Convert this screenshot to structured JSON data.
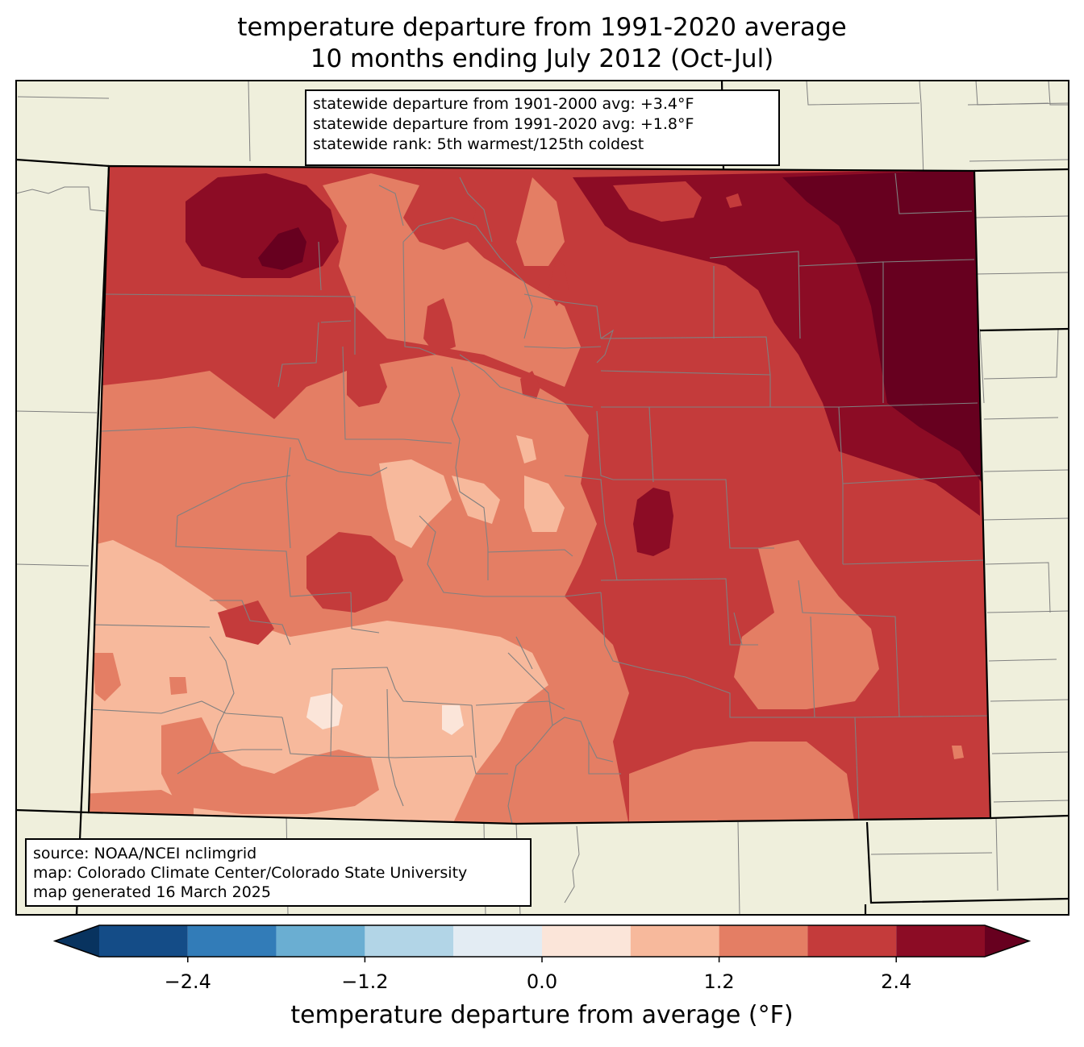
{
  "title": {
    "line1": "temperature departure from 1991-2020 average",
    "line2": "10 months ending July 2012 (Oct-Jul)"
  },
  "stats": {
    "line1": "statewide departure from 1901-2000 avg: +3.4°F",
    "line2": "statewide departure from 1991-2020 avg: +1.8°F",
    "line3": "statewide rank: 5th warmest/125th coldest"
  },
  "credits": {
    "source": "source: NOAA/NCEI nclimgrid",
    "map": "map: Colorado Climate Center/Colorado State University",
    "generated": "map generated 16 March 2025"
  },
  "colorbar": {
    "label": "temperature departure from average (°F)",
    "ticks": [
      "−2.4",
      "−1.2",
      "0.0",
      "1.2",
      "2.4"
    ],
    "tick_values": [
      -2.4,
      -1.2,
      0.0,
      1.2,
      2.4
    ],
    "bounds": [
      -3.0,
      -2.4,
      -1.8,
      -1.2,
      -0.6,
      0.0,
      0.6,
      1.2,
      1.8,
      2.4,
      3.0
    ],
    "colors": [
      "#144c87",
      "#327cb8",
      "#6aaed2",
      "#b2d5e7",
      "#e3ecf3",
      "#fbe5d9",
      "#f7b99c",
      "#e47e64",
      "#c43b3b",
      "#8c0c25"
    ],
    "under_color": "#08335f",
    "over_color": "#67001f"
  },
  "colors": {
    "land": "#efefdc",
    "county_lines": "#808080",
    "state_lines": "#000000"
  }
}
